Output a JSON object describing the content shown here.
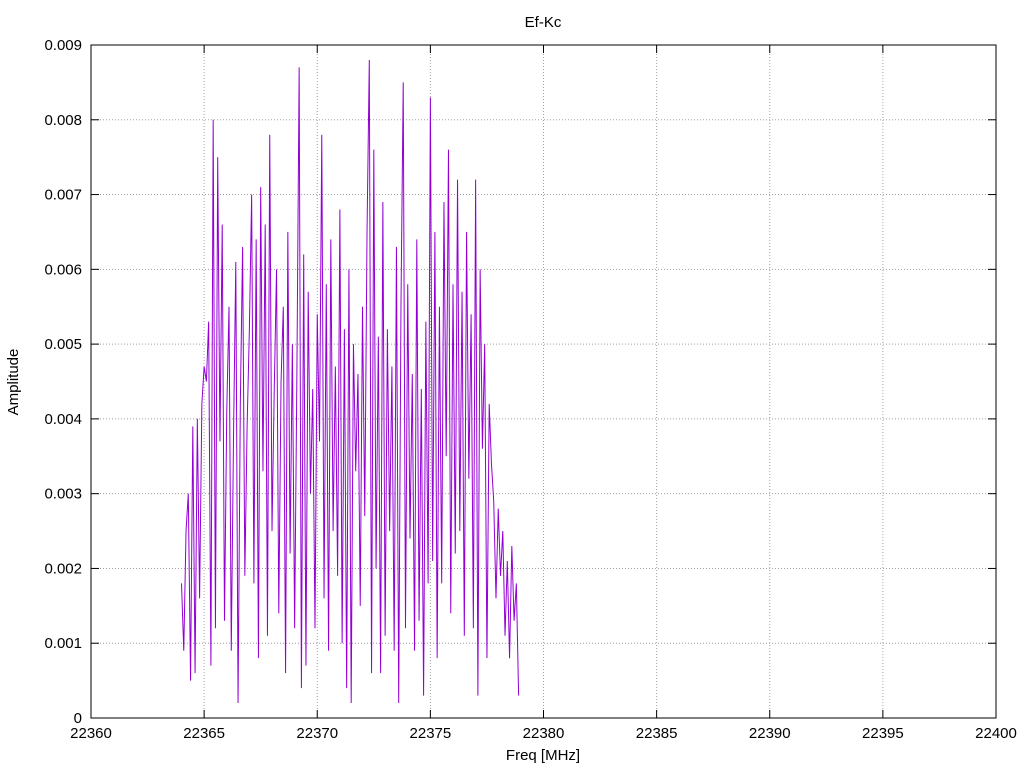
{
  "chart_data": {
    "type": "line",
    "title": "Ef-Kc",
    "xlabel": "Freq [MHz]",
    "ylabel": "Amplitude",
    "xlim": [
      22360,
      22400
    ],
    "ylim": [
      0,
      0.009
    ],
    "x_ticks": [
      22360,
      22365,
      22370,
      22375,
      22380,
      22385,
      22390,
      22395,
      22400
    ],
    "x_tick_labels": [
      "22360",
      "22365",
      "22370",
      "22375",
      "22380",
      "22385",
      "22390",
      "22395",
      "22400"
    ],
    "y_ticks": [
      0,
      0.001,
      0.002,
      0.003,
      0.004,
      0.005,
      0.006,
      0.007,
      0.008,
      0.009
    ],
    "y_tick_labels": [
      "0",
      "0.001",
      "0.002",
      "0.003",
      "0.004",
      "0.005",
      "0.006",
      "0.007",
      "0.008",
      "0.009"
    ],
    "grid": true,
    "legend": "none",
    "color": "#9400D3",
    "series": [
      {
        "x_start": 22364.0,
        "x_step": 0.1,
        "values": [
          0.0018,
          0.0009,
          0.0025,
          0.003,
          0.0005,
          0.0039,
          0.0006,
          0.004,
          0.0016,
          0.0042,
          0.0047,
          0.0045,
          0.0053,
          0.0007,
          0.008,
          0.0012,
          0.0075,
          0.0037,
          0.0066,
          0.0013,
          0.0041,
          0.0055,
          0.0009,
          0.0038,
          0.0061,
          0.0002,
          0.0042,
          0.0063,
          0.0019,
          0.0039,
          0.0052,
          0.007,
          0.0018,
          0.0064,
          0.0008,
          0.0071,
          0.0033,
          0.0066,
          0.0011,
          0.0078,
          0.0025,
          0.0044,
          0.006,
          0.0014,
          0.0045,
          0.0055,
          0.0006,
          0.0065,
          0.0022,
          0.005,
          0.0012,
          0.0046,
          0.0087,
          0.0004,
          0.0062,
          0.0007,
          0.0057,
          0.003,
          0.0044,
          0.0012,
          0.0054,
          0.0037,
          0.0078,
          0.0016,
          0.0058,
          0.0009,
          0.0064,
          0.0025,
          0.0047,
          0.0019,
          0.0068,
          0.001,
          0.0052,
          0.0004,
          0.006,
          0.0002,
          0.005,
          0.0033,
          0.0046,
          0.0015,
          0.0055,
          0.0027,
          0.0065,
          0.0088,
          0.0006,
          0.0076,
          0.002,
          0.0051,
          0.0006,
          0.0069,
          0.0011,
          0.0052,
          0.0025,
          0.0047,
          0.0009,
          0.0063,
          0.0002,
          0.0055,
          0.0085,
          0.0012,
          0.0058,
          0.0024,
          0.0046,
          0.0009,
          0.0064,
          0.0013,
          0.0044,
          0.0003,
          0.0053,
          0.0018,
          0.0083,
          0.0021,
          0.0065,
          0.0008,
          0.0055,
          0.0018,
          0.0069,
          0.0035,
          0.0076,
          0.0014,
          0.0058,
          0.0022,
          0.0072,
          0.0025,
          0.0057,
          0.0011,
          0.0065,
          0.0032,
          0.0054,
          0.0012,
          0.0072,
          0.0003,
          0.006,
          0.0036,
          0.005,
          0.0008,
          0.0042,
          0.0034,
          0.0029,
          0.0016,
          0.0028,
          0.0019,
          0.0025,
          0.0011,
          0.0021,
          0.0008,
          0.0023,
          0.0013,
          0.0018,
          0.0003
        ]
      }
    ]
  }
}
